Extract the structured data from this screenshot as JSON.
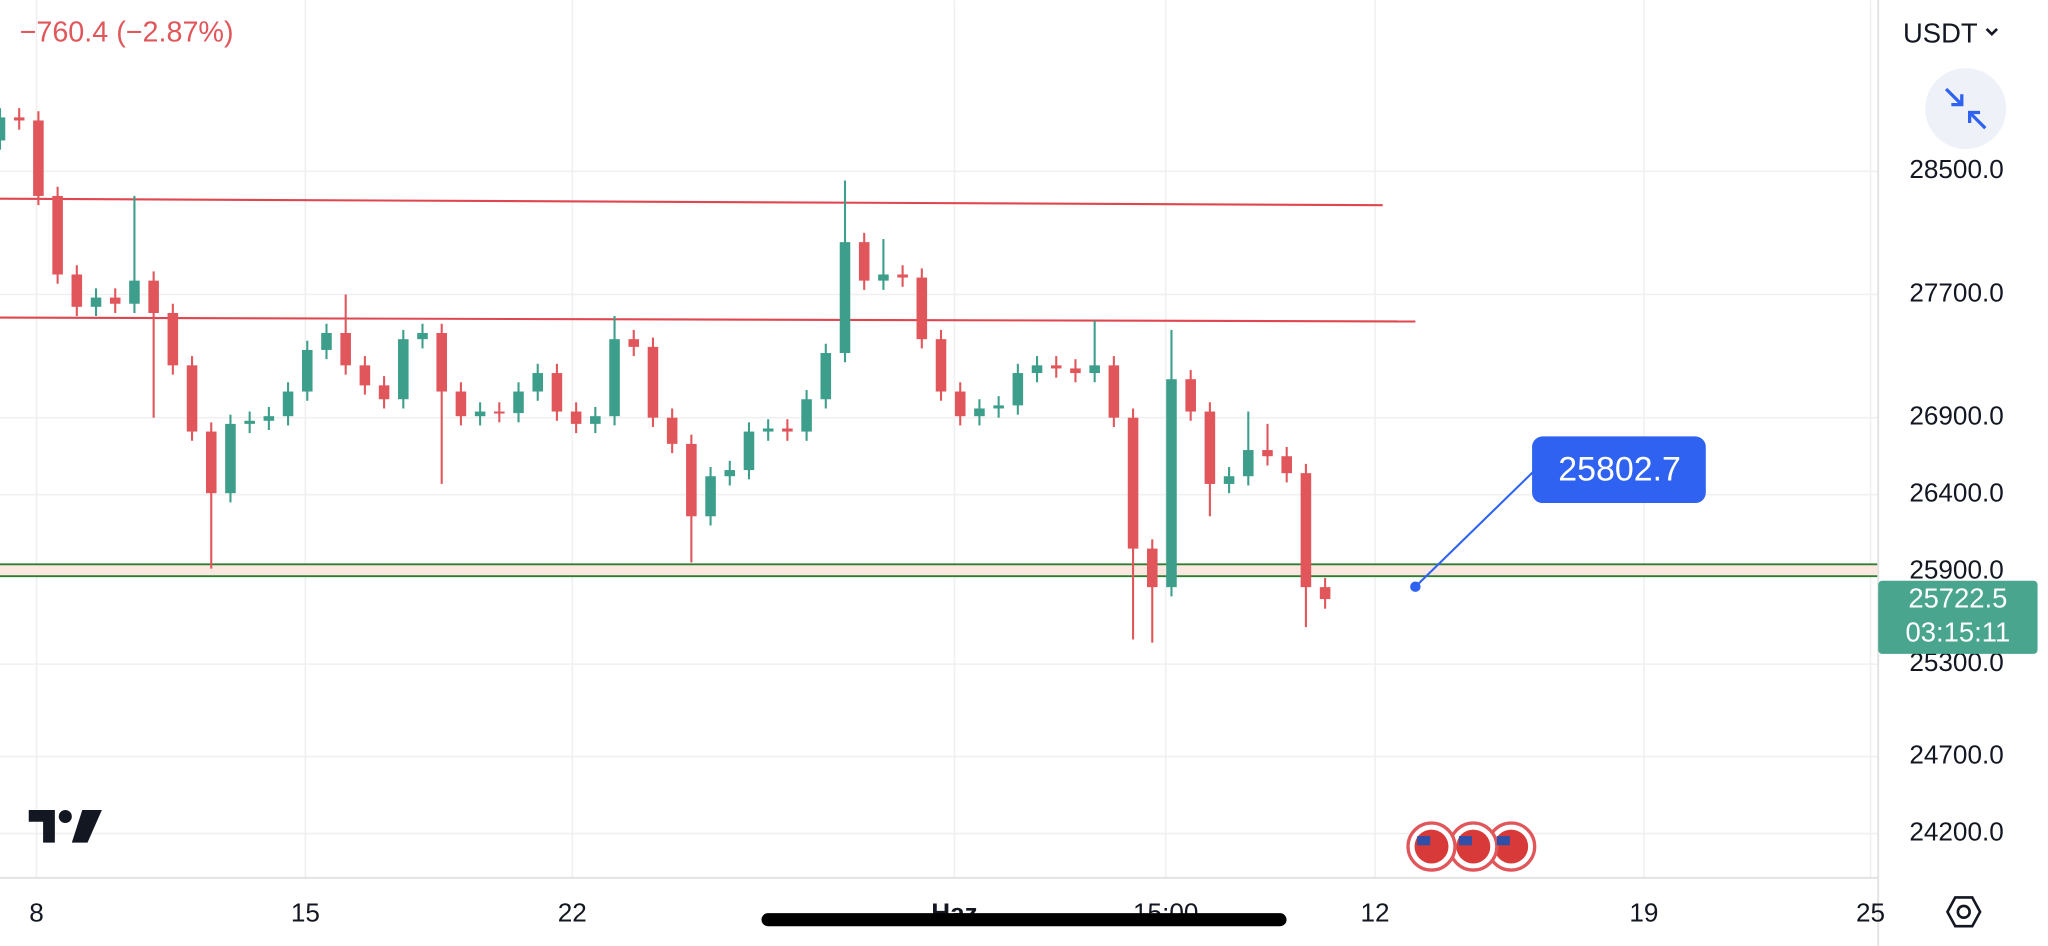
{
  "chart_data": {
    "type": "candlestick",
    "change_label": "−760.4 (−2.87%)",
    "currency": "USDT",
    "x": [
      0,
      1,
      2,
      3,
      4,
      5,
      6,
      7,
      8,
      9,
      10,
      11,
      12,
      13,
      14,
      15,
      16,
      17,
      18,
      19,
      20,
      21,
      22,
      23,
      24,
      25,
      26,
      27,
      28,
      29,
      30,
      31,
      32,
      33,
      34,
      35,
      36,
      37,
      38,
      39,
      40,
      41,
      42,
      43,
      44,
      45,
      46,
      47,
      48,
      49,
      50,
      51,
      52,
      53,
      54,
      55,
      56,
      57,
      58,
      59,
      60,
      61,
      62,
      63,
      64,
      65,
      66,
      67,
      68,
      69
    ],
    "open": [
      28700,
      28850,
      28830,
      28340,
      27830,
      27620,
      27680,
      27640,
      27790,
      27580,
      27240,
      26810,
      26410,
      26860,
      26880,
      26910,
      27070,
      27340,
      27450,
      27240,
      27110,
      27020,
      27410,
      27450,
      27070,
      26910,
      26940,
      26930,
      27070,
      27190,
      26940,
      26860,
      26910,
      27410,
      27360,
      26900,
      26730,
      26260,
      26520,
      26560,
      26810,
      26830,
      26810,
      27020,
      27320,
      28040,
      27790,
      27830,
      27810,
      27410,
      27070,
      26910,
      26960,
      26980,
      27190,
      27240,
      27220,
      27190,
      27240,
      26900,
      26050,
      25800,
      27150,
      26940,
      26470,
      26520,
      26690,
      26650,
      26540,
      25800
    ],
    "high": [
      28910,
      28910,
      28890,
      28400,
      27890,
      27740,
      27740,
      28340,
      27850,
      27640,
      27300,
      26870,
      26920,
      26940,
      26970,
      27130,
      27400,
      27510,
      27700,
      27300,
      27170,
      27470,
      27510,
      27510,
      27130,
      27000,
      27000,
      27130,
      27250,
      27250,
      27000,
      26970,
      27560,
      27470,
      27420,
      26960,
      26790,
      26580,
      26620,
      26870,
      26890,
      26890,
      27080,
      27380,
      28440,
      28100,
      28060,
      27890,
      27870,
      27470,
      27130,
      27020,
      27040,
      27250,
      27300,
      27300,
      27280,
      27530,
      27300,
      26960,
      26110,
      27470,
      27210,
      27000,
      26580,
      26940,
      26860,
      26710,
      26600,
      25860
    ],
    "low": [
      28640,
      28770,
      28280,
      27770,
      27560,
      27560,
      27580,
      27580,
      26900,
      27180,
      26750,
      25920,
      26350,
      26800,
      26820,
      26850,
      27010,
      27280,
      27180,
      27050,
      26960,
      26960,
      27350,
      26470,
      26850,
      26850,
      26870,
      26870,
      27010,
      26880,
      26800,
      26800,
      26850,
      27300,
      26840,
      26670,
      25960,
      26200,
      26460,
      26500,
      26750,
      26750,
      26750,
      26960,
      27260,
      27730,
      27730,
      27750,
      27350,
      27010,
      26850,
      26850,
      26900,
      26920,
      27130,
      27160,
      27130,
      27130,
      26840,
      25460,
      25440,
      25740,
      26880,
      26260,
      26410,
      26460,
      26590,
      26480,
      25540,
      25660
    ],
    "close": [
      28850,
      28830,
      28340,
      27830,
      27620,
      27680,
      27640,
      27790,
      27580,
      27240,
      26810,
      26410,
      26860,
      26880,
      26910,
      27070,
      27340,
      27450,
      27240,
      27110,
      27020,
      27410,
      27450,
      27070,
      26910,
      26940,
      26930,
      27070,
      27190,
      26940,
      26860,
      26910,
      27410,
      27360,
      26900,
      26730,
      26260,
      26520,
      26560,
      26810,
      26830,
      26810,
      27020,
      27320,
      28040,
      27790,
      27830,
      27810,
      27410,
      27070,
      26910,
      26960,
      26980,
      27190,
      27240,
      27220,
      27190,
      27240,
      26900,
      26050,
      25800,
      27150,
      26940,
      26470,
      26520,
      26690,
      26650,
      26540,
      25800,
      25722.5
    ],
    "up_color": "#3d9f8b",
    "down_color": "#e0565b",
    "xlim": [
      0,
      97.8
    ],
    "xticks": [
      {
        "value": 1.9,
        "label": "8"
      },
      {
        "value": 15.9,
        "label": "15"
      },
      {
        "value": 29.8,
        "label": "22"
      },
      {
        "value": 49.7,
        "label": "Haz"
      },
      {
        "value": 60.7,
        "label": "15:00"
      },
      {
        "value": 71.6,
        "label": "12"
      },
      {
        "value": 85.6,
        "label": "19"
      },
      {
        "value": 97.4,
        "label": "25"
      }
    ],
    "ylim": [
      23912,
      29611
    ],
    "yticks": [
      {
        "value": 28500,
        "label": "28500.0"
      },
      {
        "value": 27700,
        "label": "27700.0"
      },
      {
        "value": 26900,
        "label": "26900.0"
      },
      {
        "value": 26400,
        "label": "26400.0"
      },
      {
        "value": 25900,
        "label": "25900.0"
      },
      {
        "value": 25300,
        "label": "25300.0"
      },
      {
        "value": 24700,
        "label": "24700.0"
      },
      {
        "value": 24200,
        "label": "24200.0"
      }
    ],
    "grid": true,
    "trendlines": [
      {
        "x": [
          0,
          72.0
        ],
        "y": [
          28322,
          28280
        ],
        "color": "#e0464f"
      },
      {
        "x": [
          0,
          73.7
        ],
        "y": [
          27550,
          27525
        ],
        "color": "#e0464f"
      }
    ],
    "zone": {
      "y": [
        25948,
        25871
      ],
      "color": "#2e7d32",
      "fill": "#fbe9e1"
    },
    "callout": {
      "x": 73.7,
      "value": 25802.7,
      "color": "#2f62f0"
    },
    "last_price": 25722.5,
    "countdown": "03:15:11",
    "last_color": "#4aa58f"
  }
}
